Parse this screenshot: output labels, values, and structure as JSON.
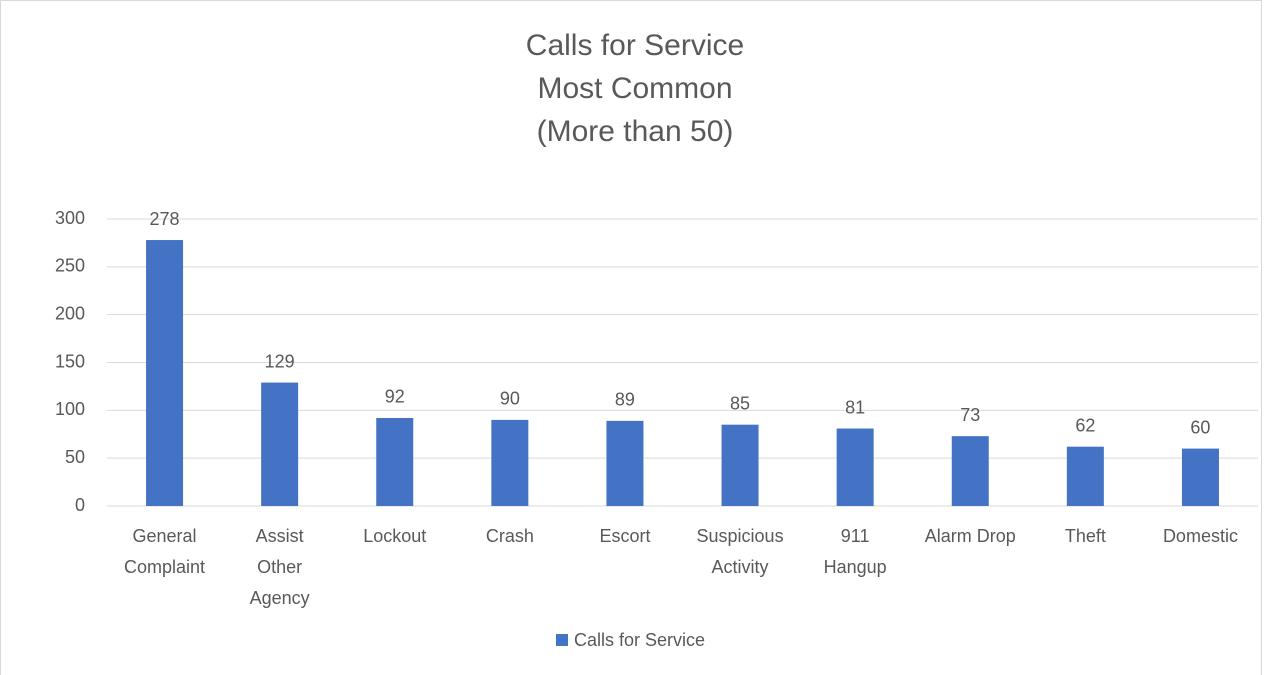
{
  "chart_data": {
    "type": "bar",
    "title": [
      "Calls for Service",
      "Most Common",
      "(More than 50)"
    ],
    "categories": [
      [
        "General",
        "Complaint"
      ],
      [
        "Assist",
        "Other",
        "Agency"
      ],
      [
        "Lockout"
      ],
      [
        "Crash"
      ],
      [
        "Escort"
      ],
      [
        "Suspicious",
        "Activity"
      ],
      [
        "911",
        "Hangup"
      ],
      [
        "Alarm Drop"
      ],
      [
        "Theft"
      ],
      [
        "Domestic"
      ]
    ],
    "series": [
      {
        "name": "Calls for Service",
        "color": "#4472c4",
        "values": [
          278,
          129,
          92,
          90,
          89,
          85,
          81,
          73,
          62,
          60
        ]
      }
    ],
    "ylim": [
      0,
      300
    ],
    "yticks": [
      0,
      50,
      100,
      150,
      200,
      250,
      300
    ],
    "grid": true,
    "legend": "bottom"
  }
}
